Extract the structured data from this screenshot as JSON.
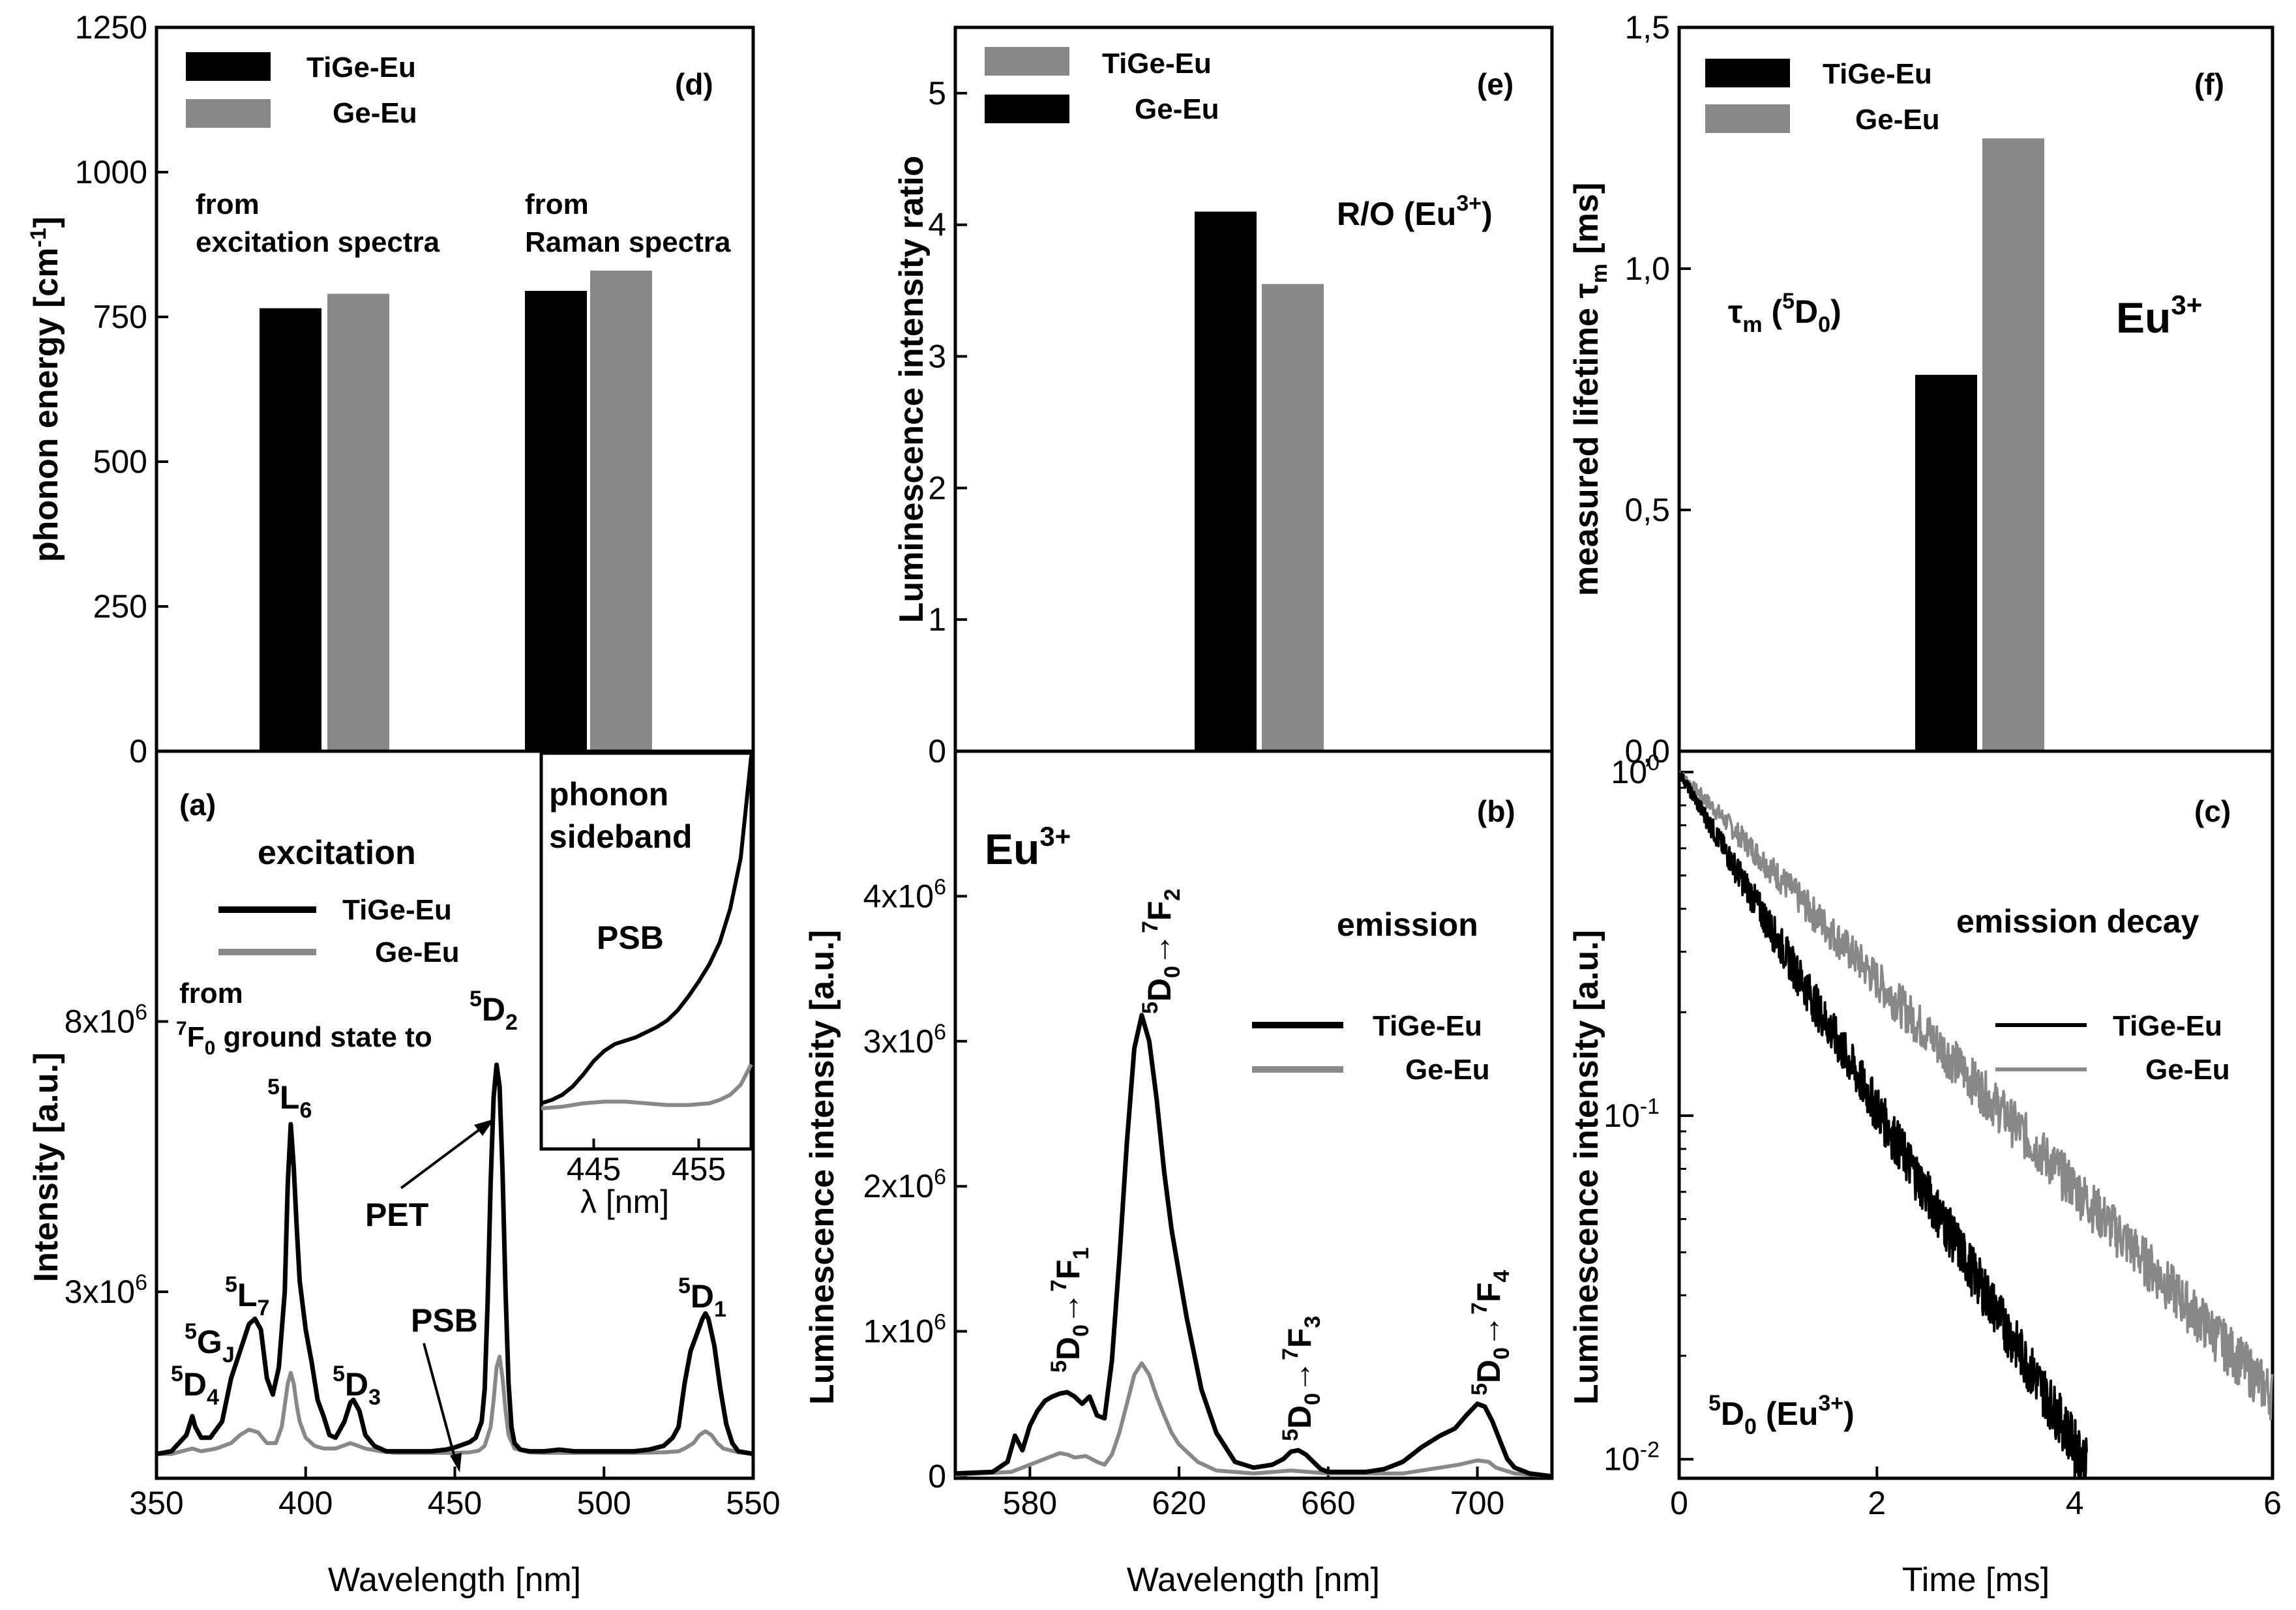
{
  "colors": {
    "tige": "#000000",
    "ge": "#888888",
    "frame": "#000000",
    "background": "#ffffff"
  },
  "chart_data": [
    {
      "id": "d",
      "type": "bar",
      "panel_label": "(d)",
      "ylabel": "phonon energy [cm",
      "ylabel_sup": "-1",
      "ylabel_end": "]",
      "ylim": [
        0,
        1250
      ],
      "yticks": [
        0,
        250,
        500,
        750,
        1000,
        1250
      ],
      "categories": [
        "from excitation spectra",
        "from Raman spectra"
      ],
      "category_labels": [
        [
          "from",
          "excitation spectra"
        ],
        [
          "from",
          "Raman spectra"
        ]
      ],
      "series": [
        {
          "name": "TiGe-Eu",
          "values": [
            765,
            795
          ]
        },
        {
          "name": "Ge-Eu",
          "values": [
            790,
            830
          ]
        }
      ],
      "legend": [
        {
          "name": "TiGe-Eu",
          "color": "#000000"
        },
        {
          "name": "Ge-Eu",
          "color": "#888888"
        }
      ]
    },
    {
      "id": "e",
      "type": "bar",
      "panel_label": "(e)",
      "ylabel": "Luminescence intensity ratio",
      "ylim": [
        0,
        5.5
      ],
      "yticks": [
        0,
        1,
        2,
        3,
        4,
        5
      ],
      "annotation": "R/O (Eu",
      "annotation_sup": "3+",
      "annotation_end": ")",
      "series": [
        {
          "name": "Ge-Eu",
          "values": [
            4.1
          ]
        },
        {
          "name": "TiGe-Eu",
          "values": [
            3.55
          ]
        }
      ],
      "legend": [
        {
          "name": "TiGe-Eu",
          "color": "#888888"
        },
        {
          "name": "Ge-Eu",
          "color": "#000000"
        }
      ]
    },
    {
      "id": "f",
      "type": "bar",
      "panel_label": "(f)",
      "ylabel": "measured lifetime τ",
      "ylabel_sub": "m",
      "ylabel_end": " [ms]",
      "ylim": [
        0,
        1.5
      ],
      "yticks": [
        0,
        0.5,
        1.0,
        1.5
      ],
      "ytick_labels": [
        "0,0",
        "0,5",
        "1,0",
        "1,5"
      ],
      "annotation_eu": "Eu",
      "annotation_eu_sup": "3+",
      "annotation_tau": "τ",
      "annotation_tau_sub": "m",
      "annotation_tau_mid": " (",
      "annotation_tau_sup": "5",
      "annotation_tau_D": "D",
      "annotation_tau_Dsub": "0",
      "annotation_tau_end": ")",
      "series": [
        {
          "name": "TiGe-Eu",
          "values": [
            0.78
          ]
        },
        {
          "name": "Ge-Eu",
          "values": [
            1.27
          ]
        }
      ],
      "legend": [
        {
          "name": "TiGe-Eu",
          "color": "#000000"
        },
        {
          "name": "Ge-Eu",
          "color": "#888888"
        }
      ]
    },
    {
      "id": "a",
      "type": "line",
      "panel_label": "(a)",
      "title": "excitation",
      "xlabel": "Wavelength [nm]",
      "ylabel": "Intensity [a.u.]",
      "xlim": [
        350,
        550
      ],
      "xticks": [
        350,
        400,
        450,
        500,
        550
      ],
      "ylim": [
        -0.45,
        13.0
      ],
      "yticks": [
        3,
        8
      ],
      "ytick_labels": [
        "3x10",
        "8x10"
      ],
      "ytick_exp": "6",
      "series": [
        {
          "name": "TiGe-Eu",
          "x": [
            350,
            355,
            360,
            362,
            363,
            365,
            368,
            372,
            375,
            378,
            381,
            383,
            385,
            387,
            389,
            391,
            393,
            394,
            395,
            396,
            397,
            398,
            400,
            402,
            404,
            406,
            408,
            410,
            413,
            415,
            416,
            418,
            420,
            423,
            427,
            432,
            437,
            442,
            447,
            450,
            453,
            455,
            457,
            459,
            460,
            461,
            462,
            463,
            464,
            465,
            466,
            467,
            468,
            469,
            470,
            472,
            475,
            480,
            485,
            490,
            495,
            500,
            505,
            510,
            515,
            520,
            523,
            525,
            527,
            529,
            531,
            533,
            534,
            535,
            537,
            539,
            541,
            543,
            545,
            548,
            550
          ],
          "y": [
            0,
            0.05,
            0.35,
            0.7,
            0.5,
            0.3,
            0.3,
            0.6,
            1.4,
            1.9,
            2.4,
            2.5,
            2.3,
            1.4,
            1.1,
            1.6,
            3.0,
            5.0,
            6.1,
            5.3,
            4.2,
            3.2,
            2.3,
            1.7,
            1.0,
            0.7,
            0.35,
            0.3,
            0.6,
            0.95,
            1.0,
            0.8,
            0.35,
            0.15,
            0.05,
            0.05,
            0.05,
            0.05,
            0.08,
            0.12,
            0.18,
            0.22,
            0.3,
            0.6,
            1.2,
            2.8,
            5.0,
            6.6,
            7.2,
            6.8,
            5.2,
            3.0,
            1.3,
            0.5,
            0.2,
            0.08,
            0.05,
            0.05,
            0.08,
            0.05,
            0.05,
            0.05,
            0.05,
            0.05,
            0.08,
            0.15,
            0.3,
            0.5,
            1.3,
            1.9,
            2.2,
            2.5,
            2.6,
            2.5,
            2.0,
            1.2,
            0.55,
            0.2,
            0.05,
            0.02,
            0.0
          ]
        },
        {
          "name": "Ge-Eu",
          "x": [
            350,
            355,
            362,
            365,
            370,
            375,
            378,
            381,
            384,
            387,
            390,
            392,
            393,
            394,
            395,
            396,
            397,
            398,
            400,
            403,
            406,
            410,
            415,
            420,
            425,
            430,
            440,
            450,
            455,
            458,
            460,
            462,
            463,
            464,
            465,
            466,
            467,
            468,
            470,
            475,
            480,
            490,
            500,
            510,
            520,
            525,
            527,
            530,
            532,
            534,
            536,
            538,
            540,
            545,
            550
          ],
          "y": [
            0,
            0,
            0.1,
            0.05,
            0.1,
            0.2,
            0.35,
            0.45,
            0.4,
            0.2,
            0.2,
            0.5,
            0.9,
            1.3,
            1.5,
            1.3,
            0.9,
            0.6,
            0.3,
            0.15,
            0.1,
            0.1,
            0.2,
            0.1,
            0.05,
            0.02,
            0.02,
            0.02,
            0.03,
            0.06,
            0.15,
            0.5,
            1.0,
            1.6,
            1.8,
            1.4,
            0.8,
            0.35,
            0.1,
            0.03,
            0.02,
            0.02,
            0.02,
            0.02,
            0.03,
            0.05,
            0.1,
            0.2,
            0.35,
            0.42,
            0.35,
            0.2,
            0.1,
            0.03,
            0.0
          ]
        }
      ],
      "legend": [
        {
          "name": "TiGe-Eu",
          "color": "#000000"
        },
        {
          "name": "Ge-Eu",
          "color": "#888888"
        }
      ],
      "annotations": {
        "from": "from",
        "ground_sup": "7",
        "ground_F": "F",
        "ground_sub": "0",
        "ground_rest": " ground state to",
        "d2_sup": "5",
        "d2_D": "D",
        "d2_sub": "2",
        "l6_sup": "5",
        "l6_L": "L",
        "l6_sub": "6",
        "l7_sup": "5",
        "l7_L": "L",
        "l7_sub": "7",
        "gj_sup": "5",
        "gj_G": "G",
        "gj_sub": "J",
        "d4_sup": "5",
        "d4_D": "D",
        "d4_sub": "4",
        "d3_sup": "5",
        "d3_D": "D",
        "d3_sub": "3",
        "d1_sup": "5",
        "d1_D": "D",
        "d1_sub": "1",
        "pet": "PET",
        "psb": "PSB"
      },
      "inset": {
        "title_line1": "phonon",
        "title_line2": "sideband",
        "psb": "PSB",
        "xlabel": "λ [nm]",
        "xlim": [
          440,
          460
        ],
        "xticks": [
          445,
          455
        ],
        "series": [
          {
            "name": "TiGe-Eu",
            "x": [
              440,
              441,
              442,
              443,
              444,
              445,
              446,
              447,
              448,
              449,
              450,
              451,
              452,
              453,
              454,
              455,
              456,
              457,
              458,
              459,
              460
            ],
            "y": [
              0.05,
              0.07,
              0.1,
              0.15,
              0.22,
              0.3,
              0.36,
              0.4,
              0.42,
              0.44,
              0.47,
              0.5,
              0.54,
              0.6,
              0.68,
              0.77,
              0.87,
              1.0,
              1.2,
              1.5,
              2.1
            ]
          },
          {
            "name": "Ge-Eu",
            "x": [
              440,
              442,
              444,
              446,
              448,
              450,
              452,
              454,
              456,
              457,
              458,
              459,
              460
            ],
            "y": [
              0.02,
              0.03,
              0.05,
              0.06,
              0.06,
              0.05,
              0.04,
              0.04,
              0.05,
              0.07,
              0.1,
              0.16,
              0.28
            ]
          }
        ]
      }
    },
    {
      "id": "b",
      "type": "line",
      "panel_label": "(b)",
      "title": "emission",
      "label_eu": "Eu",
      "label_eu_sup": "3+",
      "xlabel": "Wavelength [nm]",
      "ylabel": "Luminescence intensity [a.u.]",
      "xlim": [
        560,
        720
      ],
      "xticks": [
        580,
        620,
        660,
        700
      ],
      "ylim": [
        0,
        5.0
      ],
      "yticks": [
        0,
        1,
        2,
        3,
        4
      ],
      "ytick_labels": [
        "0",
        "1x10",
        "2x10",
        "3x10",
        "4x10"
      ],
      "ytick_exp": "6",
      "series": [
        {
          "name": "TiGe-Eu",
          "x": [
            560,
            570,
            574,
            576,
            578,
            580,
            582,
            584,
            586,
            588,
            590,
            592,
            594,
            596,
            598,
            600,
            602,
            604,
            606,
            608,
            610,
            612,
            614,
            616,
            618,
            620,
            622,
            624,
            626,
            630,
            635,
            640,
            645,
            648,
            650,
            652,
            654,
            656,
            658,
            660,
            665,
            670,
            675,
            680,
            685,
            690,
            694,
            697,
            700,
            702,
            704,
            706,
            708,
            710,
            714,
            720
          ],
          "y": [
            0.02,
            0.03,
            0.1,
            0.28,
            0.18,
            0.35,
            0.45,
            0.52,
            0.55,
            0.57,
            0.58,
            0.55,
            0.5,
            0.55,
            0.42,
            0.4,
            0.8,
            1.5,
            2.3,
            2.95,
            3.18,
            3.0,
            2.6,
            2.1,
            1.7,
            1.4,
            1.1,
            0.85,
            0.6,
            0.3,
            0.1,
            0.06,
            0.08,
            0.12,
            0.17,
            0.18,
            0.15,
            0.1,
            0.05,
            0.03,
            0.03,
            0.03,
            0.05,
            0.1,
            0.2,
            0.28,
            0.33,
            0.42,
            0.5,
            0.48,
            0.38,
            0.25,
            0.12,
            0.06,
            0.02,
            0.0
          ]
        },
        {
          "name": "Ge-Eu",
          "x": [
            560,
            575,
            580,
            585,
            588,
            590,
            592,
            595,
            598,
            600,
            602,
            604,
            606,
            608,
            610,
            612,
            614,
            616,
            618,
            620,
            625,
            630,
            640,
            650,
            660,
            680,
            695,
            700,
            703,
            705,
            710,
            720
          ],
          "y": [
            0.01,
            0.03,
            0.08,
            0.13,
            0.16,
            0.15,
            0.13,
            0.14,
            0.1,
            0.08,
            0.15,
            0.3,
            0.5,
            0.7,
            0.78,
            0.7,
            0.55,
            0.42,
            0.3,
            0.22,
            0.1,
            0.04,
            0.02,
            0.04,
            0.02,
            0.02,
            0.08,
            0.11,
            0.1,
            0.06,
            0.02,
            0.0
          ]
        }
      ],
      "legend": [
        {
          "name": "TiGe-Eu",
          "color": "#000000"
        },
        {
          "name": "Ge-Eu",
          "color": "#888888"
        }
      ],
      "transitions": [
        {
          "sup5": "5",
          "D": "D",
          "sub0": "0",
          "arrow": "→",
          "sup7": "7",
          "F": "F",
          "subF": "2"
        },
        {
          "sup5": "5",
          "D": "D",
          "sub0": "0",
          "arrow": "→",
          "sup7": "7",
          "F": "F",
          "subF": "1"
        },
        {
          "sup5": "5",
          "D": "D",
          "sub0": "0",
          "arrow": "→",
          "sup7": "7",
          "F": "F",
          "subF": "3"
        },
        {
          "sup5": "5",
          "D": "D",
          "sub0": "0",
          "arrow": "→",
          "sup7": "7",
          "F": "F",
          "subF": "4"
        }
      ]
    },
    {
      "id": "c",
      "type": "line",
      "y_scale": "log",
      "panel_label": "(c)",
      "title": "emission decay",
      "xlabel": "Time [ms]",
      "ylabel": "Luminescence intensity [a.u.]",
      "xlim": [
        0,
        6
      ],
      "xticks": [
        0,
        2,
        4,
        6
      ],
      "ylim": [
        0.0088,
        1.15
      ],
      "yticks": [
        1,
        0.1,
        0.01
      ],
      "ytick_bases": [
        "10",
        "10",
        "10"
      ],
      "ytick_exps": [
        "0",
        "-1",
        "-2"
      ],
      "series": [
        {
          "name": "TiGe-Eu",
          "tau_ms": 0.89,
          "t_end": 4.12
        },
        {
          "name": "Ge-Eu",
          "tau_ms": 1.44,
          "t_end": 6.0
        }
      ],
      "legend": [
        {
          "name": "TiGe-Eu",
          "color": "#000000"
        },
        {
          "name": "Ge-Eu",
          "color": "#888888"
        }
      ],
      "annotation_sup": "5",
      "annotation_D": "D",
      "annotation_sub": "0",
      "annotation_rest": " (Eu",
      "annotation_sup2": "3+",
      "annotation_end": ")"
    }
  ]
}
